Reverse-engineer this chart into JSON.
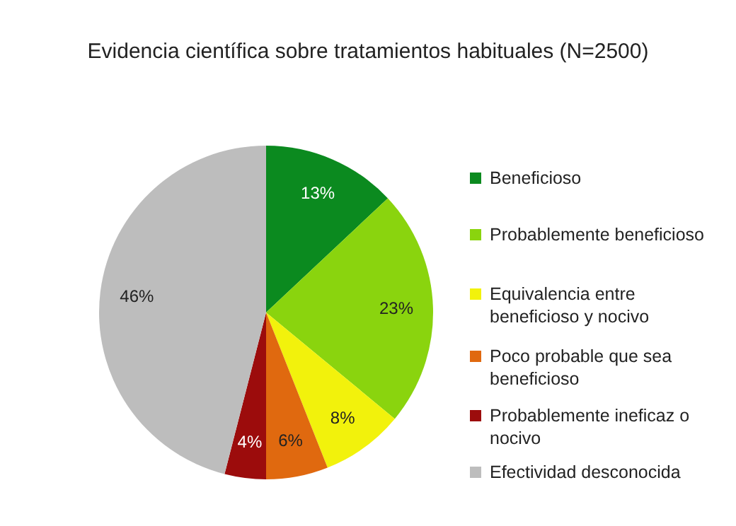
{
  "chart_data": {
    "type": "pie",
    "title": "Evidencia científica sobre tratamientos habituales (N=2500)",
    "categories": [
      "Beneficioso",
      "Probablemente beneficioso",
      "Equivalencia entre beneficioso y nocivo",
      "Poco probable que sea beneficioso",
      "Probablemente ineficaz o nocivo",
      "Efectividad desconocida"
    ],
    "values": [
      13,
      23,
      8,
      6,
      4,
      46
    ],
    "colors": [
      "#0b8a1f",
      "#8ad40e",
      "#f2f20c",
      "#e0690f",
      "#9c0c0c",
      "#bdbdbd"
    ],
    "value_labels": [
      "13%",
      "23%",
      "8%",
      "6%",
      "4%",
      "46%"
    ],
    "legend": "right"
  }
}
